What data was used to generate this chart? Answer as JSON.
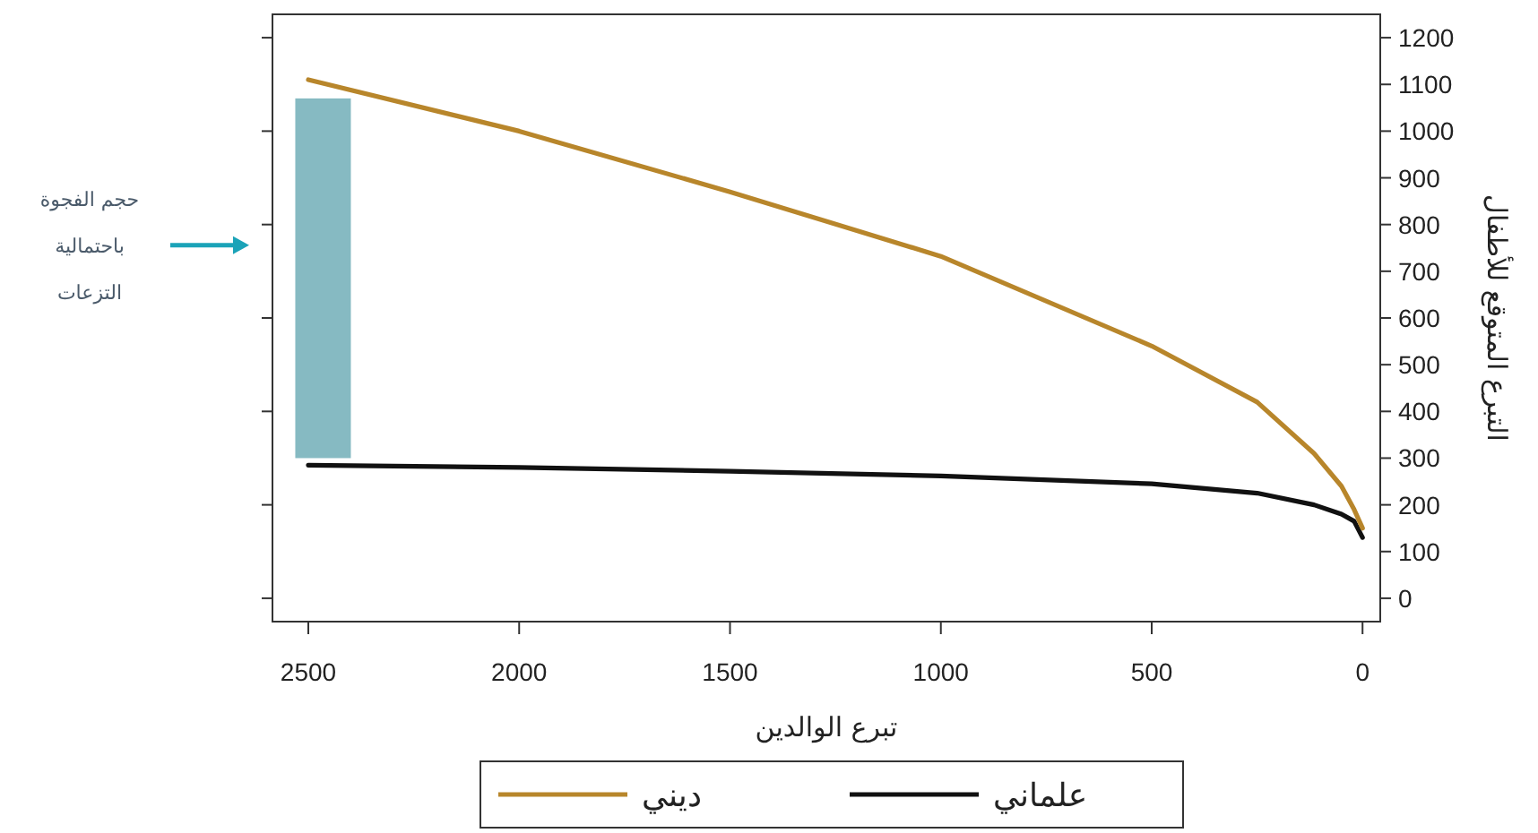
{
  "chart_data": {
    "type": "line",
    "x": [
      2500,
      2000,
      1500,
      1000,
      500,
      250,
      115,
      50,
      20,
      0
    ],
    "series": [
      {
        "type": "bar",
        "color": "#7fb6bf",
        "x": [
          2465
        ],
        "base": [
          300
        ],
        "values": [
          770
        ]
      },
      {
        "name": "ديني",
        "color": "#b8862b",
        "values": [
          1110,
          1000,
          870,
          732,
          540,
          420,
          310,
          240,
          190,
          150
        ]
      },
      {
        "name": "علماني",
        "color": "#111111",
        "values": [
          285,
          280,
          272,
          262,
          245,
          225,
          200,
          180,
          165,
          130
        ]
      }
    ],
    "xlim": [
      2585,
      -42
    ],
    "xticks": [
      2500,
      2000,
      1500,
      1000,
      500,
      0
    ],
    "ylim": [
      -50,
      1250
    ],
    "yticks": [
      0,
      100,
      200,
      300,
      400,
      500,
      600,
      700,
      800,
      900,
      1000,
      1100,
      1200
    ],
    "xlabel": "تبرع الوالدين",
    "ylabel": "التبرع المتوقع للأطفال",
    "annotations": [
      "حجم الفجوة\nباحتمالية\nالتزعات"
    ],
    "legend": "bottom",
    "grid": false,
    "marker": "none",
    "line_style": "solid"
  }
}
